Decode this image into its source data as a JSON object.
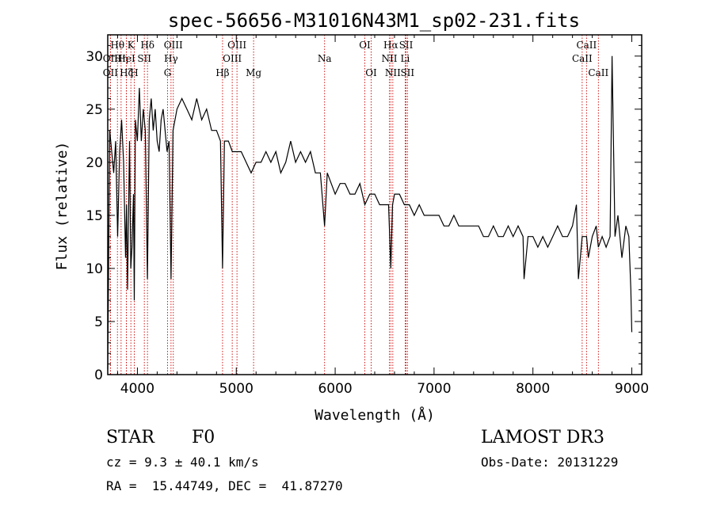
{
  "chart_data": {
    "type": "line",
    "title": "spec-56656-M31016N43M1_sp02-231.fits",
    "xlabel": "Wavelength (Å)",
    "ylabel": "Flux (relative)",
    "xlim": [
      3700,
      9100
    ],
    "ylim": [
      0,
      32
    ],
    "xticks": [
      4000,
      5000,
      6000,
      7000,
      8000,
      9000
    ],
    "yticks": [
      0,
      5,
      10,
      15,
      20,
      25,
      30
    ],
    "series": [
      {
        "name": "spectrum",
        "x": [
          3700,
          3720,
          3740,
          3760,
          3780,
          3800,
          3820,
          3840,
          3860,
          3880,
          3890,
          3900,
          3920,
          3933,
          3945,
          3960,
          3968,
          3980,
          4000,
          4020,
          4040,
          4060,
          4080,
          4101,
          4120,
          4140,
          4160,
          4180,
          4200,
          4220,
          4240,
          4260,
          4280,
          4300,
          4320,
          4340,
          4360,
          4380,
          4400,
          4450,
          4500,
          4550,
          4600,
          4650,
          4700,
          4750,
          4800,
          4840,
          4861,
          4880,
          4920,
          4960,
          5000,
          5050,
          5100,
          5150,
          5200,
          5250,
          5300,
          5350,
          5400,
          5450,
          5500,
          5550,
          5600,
          5650,
          5700,
          5750,
          5800,
          5850,
          5893,
          5920,
          5960,
          6000,
          6050,
          6100,
          6150,
          6200,
          6250,
          6300,
          6350,
          6400,
          6450,
          6500,
          6540,
          6563,
          6580,
          6600,
          6650,
          6700,
          6750,
          6800,
          6850,
          6900,
          6950,
          7000,
          7050,
          7100,
          7150,
          7200,
          7250,
          7300,
          7350,
          7400,
          7450,
          7500,
          7550,
          7600,
          7650,
          7700,
          7750,
          7800,
          7850,
          7900,
          7910,
          7950,
          8000,
          8050,
          8100,
          8150,
          8200,
          8250,
          8300,
          8350,
          8400,
          8440,
          8460,
          8498,
          8542,
          8560,
          8600,
          8640,
          8662,
          8700,
          8740,
          8780,
          8800,
          8830,
          8860,
          8900,
          8940,
          8970,
          8990,
          9000
        ],
        "y": [
          0.5,
          23,
          21,
          19,
          22,
          13,
          21,
          24,
          20,
          11,
          16,
          8,
          22,
          10,
          12,
          17,
          7,
          24,
          22,
          27,
          22,
          25,
          23,
          9,
          24,
          26,
          23,
          25,
          22,
          21,
          24,
          25,
          23,
          21,
          22,
          9,
          23,
          24,
          25,
          26,
          25,
          24,
          26,
          24,
          25,
          23,
          23,
          22,
          10,
          22,
          22,
          21,
          21,
          21,
          20,
          19,
          20,
          20,
          21,
          20,
          21,
          19,
          20,
          22,
          20,
          21,
          20,
          21,
          19,
          19,
          14,
          19,
          18,
          17,
          18,
          18,
          17,
          17,
          18,
          16,
          17,
          17,
          16,
          16,
          16,
          10,
          16,
          17,
          17,
          16,
          16,
          15,
          16,
          15,
          15,
          15,
          15,
          14,
          14,
          15,
          14,
          14,
          14,
          14,
          14,
          13,
          13,
          14,
          13,
          13,
          14,
          13,
          14,
          13,
          9,
          13,
          13,
          12,
          13,
          12,
          13,
          14,
          13,
          13,
          14,
          16,
          9,
          13,
          13,
          11,
          13,
          14,
          12,
          13,
          12,
          13,
          30,
          13,
          15,
          11,
          14,
          13,
          8,
          4
        ],
        "color": "#000000"
      }
    ],
    "line_markers": [
      {
        "name": "Hθ",
        "wavelength": 3798,
        "row": 0
      },
      {
        "name": "K",
        "wavelength": 3934,
        "row": 0
      },
      {
        "name": "Hδ",
        "wavelength": 4102,
        "row": 0
      },
      {
        "name": "OIII",
        "wavelength": 4363,
        "row": 0
      },
      {
        "name": "OIII",
        "wavelength": 5007,
        "row": 0
      },
      {
        "name": "OI",
        "wavelength": 6300,
        "row": 0
      },
      {
        "name": "Hα",
        "wavelength": 6563,
        "row": 0
      },
      {
        "name": "SII",
        "wavelength": 6717,
        "row": 0
      },
      {
        "name": "CaII",
        "wavelength": 8542,
        "row": 0
      },
      {
        "name": "OII",
        "wavelength": 3727,
        "row": 1
      },
      {
        "name": "Hη",
        "wavelength": 3835,
        "row": 1
      },
      {
        "name": "HeI",
        "wavelength": 3889,
        "row": 1
      },
      {
        "name": "SII",
        "wavelength": 4070,
        "row": 1
      },
      {
        "name": "Hγ",
        "wavelength": 4340,
        "row": 1
      },
      {
        "name": "OIII",
        "wavelength": 4959,
        "row": 1
      },
      {
        "name": "Na",
        "wavelength": 5893,
        "row": 1
      },
      {
        "name": "NII",
        "wavelength": 6548,
        "row": 1
      },
      {
        "name": "Li",
        "wavelength": 6708,
        "row": 1
      },
      {
        "name": "CaII",
        "wavelength": 8498,
        "row": 1
      },
      {
        "name": "OII",
        "wavelength": 3727,
        "row": 2
      },
      {
        "name": "Hζ",
        "wavelength": 3889,
        "row": 2
      },
      {
        "name": "H",
        "wavelength": 3968,
        "row": 2
      },
      {
        "name": "G",
        "wavelength": 4305,
        "row": 2
      },
      {
        "name": "Hβ",
        "wavelength": 4861,
        "row": 2
      },
      {
        "name": "Mg",
        "wavelength": 5175,
        "row": 2
      },
      {
        "name": "OI",
        "wavelength": 6364,
        "row": 2
      },
      {
        "name": "NII",
        "wavelength": 6583,
        "row": 2
      },
      {
        "name": "SII",
        "wavelength": 6731,
        "row": 2
      },
      {
        "name": "CaII",
        "wavelength": 8662,
        "row": 2
      }
    ],
    "marker_color": "#cc0000"
  },
  "info": {
    "class": "STAR",
    "subclass": "F0",
    "survey": "LAMOST DR3",
    "cz": "cz = 9.3 ± 40.1 km/s",
    "obs_date": "Obs-Date: 20131229",
    "radec": "RA =  15.44749, DEC =  41.87270"
  }
}
